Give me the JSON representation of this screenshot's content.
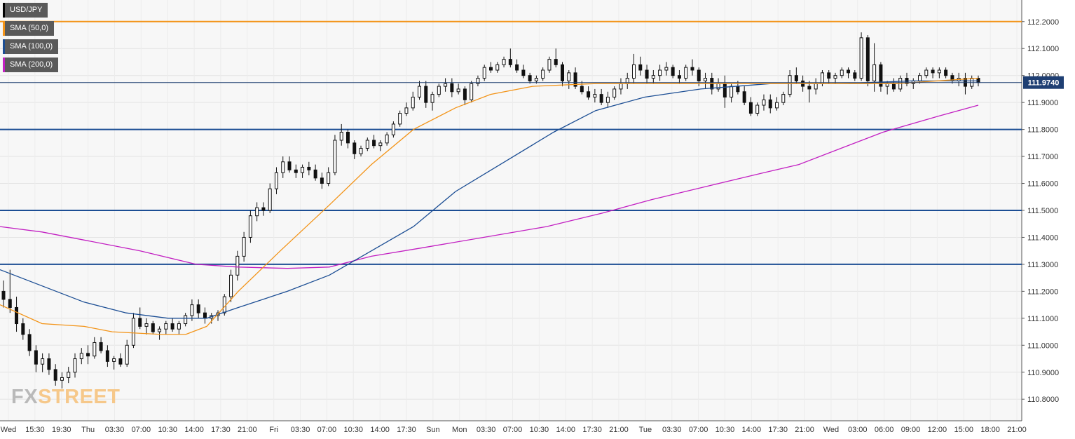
{
  "chart_data": {
    "type": "candlestick",
    "symbol": "USD/JPY",
    "indicators": [
      {
        "name": "SMA (50,0)",
        "color": "#f39418"
      },
      {
        "name": "SMA (100,0)",
        "color": "#1c4e94"
      },
      {
        "name": "SMA (200,0)",
        "color": "#c21fc2"
      }
    ],
    "ylim": [
      110.72,
      112.28
    ],
    "y_ticks": [
      "112.2000",
      "112.1000",
      "112.0000",
      "111.9000",
      "111.8000",
      "111.7000",
      "111.6000",
      "111.5000",
      "111.4000",
      "111.3000",
      "111.2000",
      "111.1000",
      "111.0000",
      "110.9000",
      "110.8000"
    ],
    "x_ticks": [
      "Wed",
      "15:30",
      "19:30",
      "Thu",
      "03:30",
      "07:00",
      "10:30",
      "14:00",
      "17:30",
      "21:00",
      "Fri",
      "03:30",
      "07:00",
      "10:30",
      "14:00",
      "17:30",
      "Sun",
      "Mon",
      "03:30",
      "07:00",
      "10:30",
      "14:00",
      "17:30",
      "21:00",
      "Tue",
      "03:30",
      "07:00",
      "10:30",
      "14:00",
      "17:30",
      "21:00",
      "Wed",
      "03:00",
      "06:00",
      "09:00",
      "12:00",
      "15:00",
      "18:00",
      "21:00"
    ],
    "current_price": "111.9740",
    "horizontal_levels": [
      {
        "price": 112.2,
        "color": "#f39418"
      },
      {
        "price": 111.8,
        "color": "#1c4e94"
      },
      {
        "price": 111.5,
        "color": "#1c4e94"
      },
      {
        "price": 111.3,
        "color": "#1c4e94"
      }
    ],
    "candles": [
      [
        111.2,
        111.24,
        111.14,
        111.17
      ],
      [
        111.17,
        111.28,
        111.12,
        111.14
      ],
      [
        111.14,
        111.18,
        111.05,
        111.08
      ],
      [
        111.08,
        111.1,
        111.02,
        111.04
      ],
      [
        111.04,
        111.06,
        110.96,
        110.98
      ],
      [
        110.98,
        111.0,
        110.9,
        110.93
      ],
      [
        110.93,
        110.97,
        110.9,
        110.95
      ],
      [
        110.95,
        110.97,
        110.89,
        110.91
      ],
      [
        110.91,
        110.93,
        110.85,
        110.87
      ],
      [
        110.87,
        110.9,
        110.84,
        110.88
      ],
      [
        110.88,
        110.92,
        110.86,
        110.9
      ],
      [
        110.9,
        110.97,
        110.88,
        110.95
      ],
      [
        110.95,
        110.99,
        110.93,
        110.97
      ],
      [
        110.97,
        111.0,
        110.93,
        110.96
      ],
      [
        110.96,
        111.03,
        110.95,
        111.01
      ],
      [
        111.01,
        111.03,
        110.97,
        110.98
      ],
      [
        110.98,
        111.0,
        110.92,
        110.94
      ],
      [
        110.94,
        110.96,
        110.91,
        110.95
      ],
      [
        110.95,
        110.97,
        110.92,
        110.93
      ],
      [
        110.93,
        111.02,
        110.92,
        111.0
      ],
      [
        111.0,
        111.12,
        110.99,
        111.1
      ],
      [
        111.1,
        111.14,
        111.06,
        111.07
      ],
      [
        111.07,
        111.1,
        111.04,
        111.08
      ],
      [
        111.08,
        111.09,
        111.04,
        111.05
      ],
      [
        111.05,
        111.07,
        111.02,
        111.06
      ],
      [
        111.06,
        111.09,
        111.04,
        111.08
      ],
      [
        111.08,
        111.1,
        111.05,
        111.06
      ],
      [
        111.06,
        111.09,
        111.04,
        111.08
      ],
      [
        111.08,
        111.12,
        111.07,
        111.11
      ],
      [
        111.11,
        111.17,
        111.09,
        111.15
      ],
      [
        111.15,
        111.17,
        111.1,
        111.12
      ],
      [
        111.12,
        111.14,
        111.08,
        111.1
      ],
      [
        111.1,
        111.12,
        111.08,
        111.11
      ],
      [
        111.11,
        111.13,
        111.09,
        111.12
      ],
      [
        111.12,
        111.19,
        111.11,
        111.18
      ],
      [
        111.18,
        111.28,
        111.16,
        111.26
      ],
      [
        111.26,
        111.35,
        111.24,
        111.33
      ],
      [
        111.33,
        111.42,
        111.31,
        111.4
      ],
      [
        111.4,
        111.5,
        111.38,
        111.48
      ],
      [
        111.48,
        111.53,
        111.46,
        111.51
      ],
      [
        111.51,
        111.53,
        111.48,
        111.5
      ],
      [
        111.5,
        111.6,
        111.49,
        111.58
      ],
      [
        111.58,
        111.66,
        111.56,
        111.64
      ],
      [
        111.64,
        111.7,
        111.62,
        111.68
      ],
      [
        111.68,
        111.7,
        111.64,
        111.65
      ],
      [
        111.65,
        111.67,
        111.62,
        111.64
      ],
      [
        111.64,
        111.67,
        111.62,
        111.66
      ],
      [
        111.66,
        111.68,
        111.63,
        111.65
      ],
      [
        111.65,
        111.67,
        111.61,
        111.62
      ],
      [
        111.62,
        111.64,
        111.58,
        111.6
      ],
      [
        111.6,
        111.66,
        111.59,
        111.64
      ],
      [
        111.64,
        111.78,
        111.63,
        111.76
      ],
      [
        111.76,
        111.82,
        111.74,
        111.79
      ],
      [
        111.79,
        111.8,
        111.73,
        111.75
      ],
      [
        111.75,
        111.76,
        111.69,
        111.71
      ],
      [
        111.71,
        111.74,
        111.7,
        111.73
      ],
      [
        111.73,
        111.77,
        111.72,
        111.76
      ],
      [
        111.76,
        111.78,
        111.73,
        111.74
      ],
      [
        111.74,
        111.76,
        111.72,
        111.75
      ],
      [
        111.75,
        111.79,
        111.74,
        111.78
      ],
      [
        111.78,
        111.83,
        111.77,
        111.82
      ],
      [
        111.82,
        111.87,
        111.81,
        111.86
      ],
      [
        111.86,
        111.9,
        111.85,
        111.88
      ],
      [
        111.88,
        111.94,
        111.87,
        111.92
      ],
      [
        111.92,
        111.98,
        111.91,
        111.96
      ],
      [
        111.96,
        111.98,
        111.88,
        111.9
      ],
      [
        111.9,
        111.94,
        111.87,
        111.93
      ],
      [
        111.93,
        111.97,
        111.92,
        111.96
      ],
      [
        111.96,
        111.99,
        111.94,
        111.97
      ],
      [
        111.97,
        111.99,
        111.92,
        111.94
      ],
      [
        111.94,
        111.97,
        111.93,
        111.95
      ],
      [
        111.95,
        111.96,
        111.89,
        111.91
      ],
      [
        111.91,
        111.98,
        111.9,
        111.97
      ],
      [
        111.97,
        112.0,
        111.96,
        111.99
      ],
      [
        111.99,
        112.04,
        111.98,
        112.03
      ],
      [
        112.03,
        112.05,
        112.01,
        112.02
      ],
      [
        112.02,
        112.05,
        112.01,
        112.04
      ],
      [
        112.04,
        112.07,
        112.03,
        112.06
      ],
      [
        112.06,
        112.1,
        112.03,
        112.04
      ],
      [
        112.04,
        112.06,
        112.01,
        112.02
      ],
      [
        112.02,
        112.04,
        111.99,
        112.0
      ],
      [
        112.0,
        112.01,
        111.97,
        111.98
      ],
      [
        111.98,
        112.0,
        111.97,
        111.99
      ],
      [
        111.99,
        112.03,
        111.98,
        112.02
      ],
      [
        112.02,
        112.07,
        112.01,
        112.06
      ],
      [
        112.06,
        112.1,
        112.03,
        112.04
      ],
      [
        112.04,
        112.05,
        111.96,
        111.98
      ],
      [
        111.98,
        112.02,
        111.95,
        112.01
      ],
      [
        112.01,
        112.03,
        111.95,
        111.96
      ],
      [
        111.96,
        111.98,
        111.93,
        111.94
      ],
      [
        111.94,
        111.96,
        111.91,
        111.92
      ],
      [
        111.92,
        111.95,
        111.9,
        111.93
      ],
      [
        111.93,
        111.95,
        111.89,
        111.9
      ],
      [
        111.9,
        111.94,
        111.88,
        111.92
      ],
      [
        111.92,
        111.96,
        111.91,
        111.95
      ],
      [
        111.95,
        111.99,
        111.93,
        111.97
      ],
      [
        111.97,
        112.01,
        111.95,
        111.99
      ],
      [
        111.99,
        112.08,
        111.97,
        112.04
      ],
      [
        112.04,
        112.07,
        112.0,
        112.02
      ],
      [
        112.02,
        112.04,
        111.97,
        111.99
      ],
      [
        111.99,
        112.02,
        111.97,
        112.0
      ],
      [
        112.0,
        112.04,
        111.98,
        112.02
      ],
      [
        112.02,
        112.05,
        112.0,
        112.03
      ],
      [
        112.03,
        112.04,
        111.99,
        112.0
      ],
      [
        112.0,
        112.02,
        111.97,
        111.99
      ],
      [
        111.99,
        112.04,
        111.98,
        112.03
      ],
      [
        112.03,
        112.06,
        112.0,
        112.02
      ],
      [
        112.02,
        112.03,
        111.96,
        111.98
      ],
      [
        111.98,
        112.01,
        111.95,
        111.99
      ],
      [
        111.99,
        112.01,
        111.93,
        111.95
      ],
      [
        111.95,
        111.99,
        111.94,
        111.97
      ],
      [
        111.97,
        112.0,
        111.88,
        111.92
      ],
      [
        111.92,
        111.97,
        111.9,
        111.96
      ],
      [
        111.96,
        111.98,
        111.93,
        111.94
      ],
      [
        111.94,
        111.96,
        111.89,
        111.9
      ],
      [
        111.9,
        111.92,
        111.85,
        111.86
      ],
      [
        111.86,
        111.9,
        111.85,
        111.89
      ],
      [
        111.89,
        111.93,
        111.87,
        111.91
      ],
      [
        111.91,
        111.93,
        111.86,
        111.88
      ],
      [
        111.88,
        111.92,
        111.87,
        111.9
      ],
      [
        111.9,
        111.94,
        111.89,
        111.93
      ],
      [
        111.93,
        112.02,
        111.92,
        112.0
      ],
      [
        112.0,
        112.03,
        111.97,
        111.98
      ],
      [
        111.98,
        112.0,
        111.94,
        111.96
      ],
      [
        111.96,
        111.98,
        111.9,
        111.95
      ],
      [
        111.95,
        111.99,
        111.93,
        111.97
      ],
      [
        111.97,
        112.02,
        111.96,
        112.01
      ],
      [
        112.01,
        112.02,
        111.97,
        111.99
      ],
      [
        111.99,
        112.01,
        111.97,
        112.0
      ],
      [
        112.0,
        112.03,
        111.99,
        112.02
      ],
      [
        112.02,
        112.03,
        111.99,
        112.01
      ],
      [
        112.01,
        112.02,
        111.98,
        111.99
      ],
      [
        111.99,
        112.16,
        111.98,
        112.14
      ],
      [
        112.14,
        112.15,
        111.96,
        111.98
      ],
      [
        111.98,
        112.12,
        111.94,
        112.04
      ],
      [
        112.04,
        112.05,
        111.94,
        111.96
      ],
      [
        111.96,
        111.98,
        111.93,
        111.97
      ],
      [
        111.97,
        111.99,
        111.94,
        111.95
      ],
      [
        111.95,
        112.0,
        111.94,
        111.99
      ],
      [
        111.99,
        112.01,
        111.96,
        111.97
      ],
      [
        111.97,
        111.99,
        111.95,
        111.98
      ],
      [
        111.98,
        112.01,
        111.97,
        112.0
      ],
      [
        112.0,
        112.03,
        111.99,
        112.02
      ],
      [
        112.02,
        112.03,
        111.99,
        112.01
      ],
      [
        112.01,
        112.03,
        111.99,
        112.02
      ],
      [
        112.02,
        112.03,
        111.99,
        112.0
      ],
      [
        112.0,
        112.01,
        111.97,
        111.98
      ],
      [
        111.98,
        112.01,
        111.96,
        111.99
      ],
      [
        111.99,
        112.01,
        111.93,
        111.96
      ],
      [
        111.96,
        112.0,
        111.95,
        111.99
      ],
      [
        111.99,
        112.0,
        111.96,
        111.974
      ]
    ],
    "sma50": [
      [
        0,
        111.15
      ],
      [
        60,
        111.08
      ],
      [
        120,
        111.07
      ],
      [
        160,
        111.05
      ],
      [
        230,
        111.04
      ],
      [
        265,
        111.04
      ],
      [
        295,
        111.07
      ],
      [
        340,
        111.2
      ],
      [
        400,
        111.35
      ],
      [
        470,
        111.52
      ],
      [
        530,
        111.67
      ],
      [
        590,
        111.8
      ],
      [
        650,
        111.88
      ],
      [
        700,
        111.93
      ],
      [
        760,
        111.96
      ],
      [
        850,
        111.97
      ],
      [
        1000,
        111.97
      ],
      [
        1100,
        111.97
      ],
      [
        1200,
        111.97
      ],
      [
        1280,
        111.97
      ],
      [
        1396,
        111.99
      ]
    ],
    "sma100": [
      [
        0,
        111.28
      ],
      [
        60,
        111.22
      ],
      [
        120,
        111.16
      ],
      [
        180,
        111.12
      ],
      [
        240,
        111.1
      ],
      [
        295,
        111.1
      ],
      [
        340,
        111.14
      ],
      [
        410,
        111.2
      ],
      [
        470,
        111.26
      ],
      [
        530,
        111.35
      ],
      [
        590,
        111.44
      ],
      [
        650,
        111.57
      ],
      [
        720,
        111.68
      ],
      [
        790,
        111.79
      ],
      [
        850,
        111.87
      ],
      [
        920,
        111.92
      ],
      [
        1000,
        111.95
      ],
      [
        1100,
        111.97
      ],
      [
        1200,
        111.97
      ],
      [
        1300,
        111.98
      ],
      [
        1396,
        111.98
      ]
    ],
    "sma200": [
      [
        0,
        111.44
      ],
      [
        60,
        111.42
      ],
      [
        120,
        111.39
      ],
      [
        200,
        111.35
      ],
      [
        280,
        111.3
      ],
      [
        340,
        111.29
      ],
      [
        410,
        111.285
      ],
      [
        470,
        111.29
      ],
      [
        530,
        111.33
      ],
      [
        600,
        111.36
      ],
      [
        690,
        111.4
      ],
      [
        780,
        111.44
      ],
      [
        860,
        111.49
      ],
      [
        930,
        111.54
      ],
      [
        1010,
        111.59
      ],
      [
        1090,
        111.64
      ],
      [
        1140,
        111.67
      ],
      [
        1200,
        111.73
      ],
      [
        1260,
        111.79
      ],
      [
        1340,
        111.85
      ],
      [
        1396,
        111.89
      ]
    ]
  },
  "watermark": {
    "fx": "FX",
    "street": "STREET"
  }
}
